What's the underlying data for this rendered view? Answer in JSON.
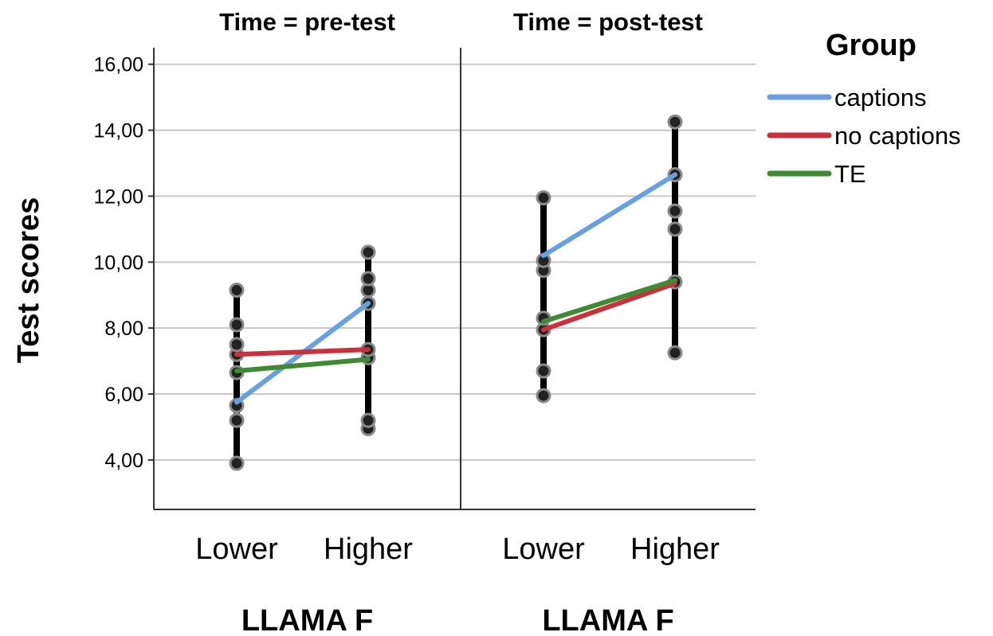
{
  "chart_data": {
    "type": "line",
    "ylabel": "Test scores",
    "ylim": [
      2.5,
      16.5
    ],
    "yticks": [
      4,
      6,
      8,
      10,
      12,
      14,
      16
    ],
    "ytick_labels": [
      "4,00",
      "6,00",
      "8,00",
      "10,00",
      "12,00",
      "14,00",
      "16,00"
    ],
    "grid": "horizontal",
    "legend": {
      "title": "Group",
      "placement": "right",
      "entries": [
        {
          "name": "captions",
          "color": "#6a9fe0"
        },
        {
          "name": "no captions",
          "color": "#c8323c"
        },
        {
          "name": "TE",
          "color": "#3f8a34"
        }
      ]
    },
    "panels": [
      {
        "title": "Time = pre-test",
        "xlabel": "LLAMA F",
        "categories": [
          "Lower",
          "Higher"
        ],
        "series": [
          {
            "name": "captions",
            "values": [
              5.75,
              8.75
            ]
          },
          {
            "name": "no captions",
            "values": [
              7.2,
              7.35
            ]
          },
          {
            "name": "TE",
            "values": [
              6.7,
              7.05
            ]
          }
        ],
        "points": [
          [
            3.9,
            5.2,
            5.65,
            6.65,
            7.2,
            7.5,
            8.1,
            9.15
          ],
          [
            4.95,
            5.2,
            7.1,
            7.35,
            8.75,
            9.15,
            9.5,
            10.3
          ]
        ]
      },
      {
        "title": "Time = post-test",
        "xlabel": "LLAMA F",
        "categories": [
          "Lower",
          "Higher"
        ],
        "series": [
          {
            "name": "captions",
            "values": [
              10.2,
              12.65
            ]
          },
          {
            "name": "no captions",
            "values": [
              7.95,
              9.35
            ]
          },
          {
            "name": "TE",
            "values": [
              8.2,
              9.45
            ]
          }
        ],
        "points": [
          [
            5.95,
            6.7,
            7.95,
            8.3,
            9.75,
            10.05,
            11.95
          ],
          [
            7.25,
            9.4,
            11.0,
            11.55,
            12.65,
            14.25
          ]
        ]
      }
    ]
  }
}
